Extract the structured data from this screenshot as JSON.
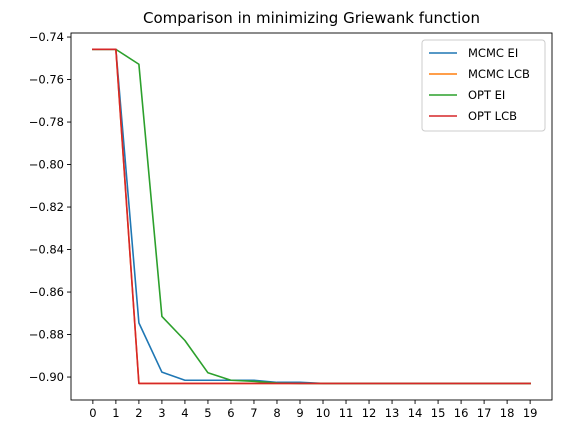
{
  "chart_data": {
    "type": "line",
    "title": "Comparison in minimizing Griewank function",
    "xlabel": "",
    "ylabel": "",
    "x": [
      0,
      1,
      2,
      3,
      4,
      5,
      6,
      7,
      8,
      9,
      10,
      11,
      12,
      13,
      14,
      15,
      16,
      17,
      18,
      19
    ],
    "xticks": [
      "0",
      "1",
      "2",
      "3",
      "4",
      "5",
      "6",
      "7",
      "8",
      "9",
      "10",
      "11",
      "12",
      "13",
      "14",
      "15",
      "16",
      "17",
      "18",
      "19"
    ],
    "yticks": [
      -0.74,
      -0.76,
      -0.78,
      -0.8,
      -0.82,
      -0.84,
      -0.86,
      -0.88,
      -0.9
    ],
    "ytick_labels": [
      "−0.74",
      "−0.76",
      "−0.78",
      "−0.80",
      "−0.82",
      "−0.84",
      "−0.86",
      "−0.88",
      "−0.90"
    ],
    "xlim": [
      -0.95,
      19.95
    ],
    "ylim": [
      -0.9108,
      -0.7381
    ],
    "grid": false,
    "legend_position": "top-right",
    "series": [
      {
        "name": "MCMC EI",
        "color": "#1f77b4",
        "values": [
          -0.7458,
          -0.7458,
          -0.8745,
          -0.8977,
          -0.9015,
          -0.9015,
          -0.9015,
          -0.9015,
          -0.9025,
          -0.9025,
          -0.903,
          -0.903,
          -0.903,
          -0.903,
          -0.903,
          -0.903,
          -0.903,
          -0.903,
          -0.903,
          -0.903
        ]
      },
      {
        "name": "MCMC LCB",
        "color": "#ff7f0e",
        "values": [
          -0.7458,
          -0.7458,
          -0.903,
          -0.903,
          -0.903,
          -0.903,
          -0.903,
          -0.903,
          -0.903,
          -0.903,
          -0.903,
          -0.903,
          -0.903,
          -0.903,
          -0.903,
          -0.903,
          -0.903,
          -0.903,
          -0.903,
          -0.903
        ]
      },
      {
        "name": "OPT EI",
        "color": "#2ca02c",
        "values": [
          -0.7458,
          -0.7458,
          -0.7528,
          -0.8715,
          -0.8828,
          -0.898,
          -0.9015,
          -0.902,
          -0.9028,
          -0.903,
          -0.903,
          -0.903,
          -0.903,
          -0.903,
          -0.903,
          -0.903,
          -0.903,
          -0.903,
          -0.903,
          -0.903
        ]
      },
      {
        "name": "OPT LCB",
        "color": "#d62728",
        "values": [
          -0.7458,
          -0.7458,
          -0.903,
          -0.903,
          -0.903,
          -0.903,
          -0.903,
          -0.903,
          -0.903,
          -0.903,
          -0.903,
          -0.903,
          -0.903,
          -0.903,
          -0.903,
          -0.903,
          -0.903,
          -0.903,
          -0.903,
          -0.903
        ]
      }
    ]
  }
}
